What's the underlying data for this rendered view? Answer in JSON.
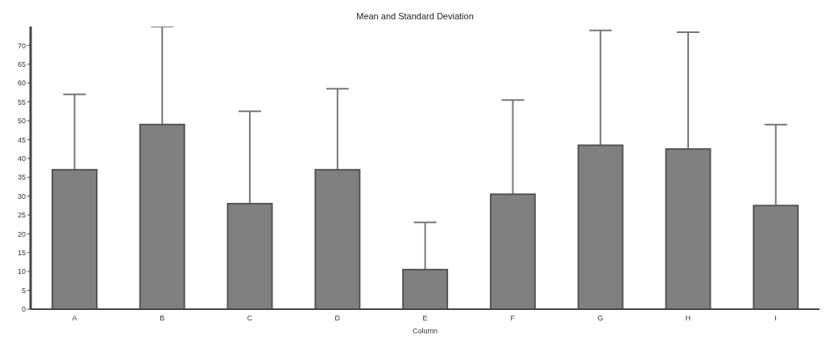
{
  "chart_data": {
    "type": "bar",
    "title": "Mean and Standard Deviation",
    "xlabel": "Column",
    "categories": [
      "A",
      "B",
      "C",
      "D",
      "E",
      "F",
      "G",
      "H",
      "I"
    ],
    "values": [
      37,
      49,
      28,
      37,
      10.5,
      30.5,
      43.5,
      42.5,
      27.5
    ],
    "errors": [
      [
        37,
        57
      ],
      [
        49,
        75
      ],
      [
        28,
        52.5
      ],
      [
        37,
        58.5
      ],
      [
        10.5,
        23
      ],
      [
        30.5,
        55.5
      ],
      [
        43.5,
        74
      ],
      [
        42.5,
        73.5
      ],
      [
        27.5,
        49
      ]
    ],
    "color": "#808080",
    "ylim": [
      0,
      75
    ],
    "yticks": [
      0,
      5,
      10,
      15,
      20,
      25,
      30,
      35,
      40,
      45,
      50,
      55,
      60,
      65,
      70
    ],
    "grid": false,
    "legend": false
  }
}
